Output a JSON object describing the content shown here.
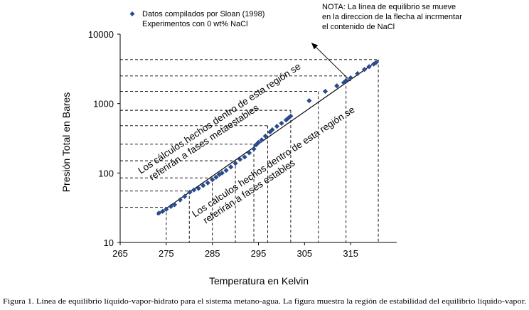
{
  "caption": "Figura 1. Línea de equilibrio líquido-vapor-hidrato para el sistema metano-agua. La figura muestra la región de estabilidad del equilibrio líquido-vapor.",
  "chart_data": {
    "type": "scatter",
    "xlabel": "Temperatura en Kelvin",
    "ylabel": "Presión Total en Bares",
    "xlim": [
      265,
      325
    ],
    "ylim": [
      10,
      10000
    ],
    "y_scale": "log",
    "x_ticks": [
      "265",
      "275",
      "285",
      "295",
      "305",
      "315"
    ],
    "y_ticks": [
      "10",
      "100",
      "1000",
      "10000"
    ],
    "legend": {
      "position": "top-center",
      "lines": [
        "Datos compilados por Sloan (1998)",
        "Experimentos con 0 wt% NaCl"
      ]
    },
    "note_lines": [
      "NOTA: La línea de equilibrio se mueve",
      "en la direccion de la flecha al incrmentar",
      "el contenido de NaCl"
    ],
    "region_upper_lines": [
      "Los cálculos hechos dentro de esta región se",
      "referirán a fases metaestables"
    ],
    "region_lower_lines": [
      "Los cálculos hechos dentro de esta región se",
      "referirán a fases estables"
    ],
    "series": [
      {
        "name": "Datos compilados por Sloan (1998)",
        "color": "#2a4b8d",
        "marker": "diamond",
        "x": [
          273.4,
          274.2,
          275.0,
          276.0,
          276.8,
          278.0,
          279.0,
          280.1,
          281.0,
          282.0,
          283.0,
          284.0,
          285.0,
          285.8,
          286.5,
          287.1,
          288.0,
          289.0,
          290.0,
          291.0,
          292.0,
          293.0,
          294.0,
          294.5,
          295.0,
          295.7,
          296.5,
          297.5,
          298.0,
          299.0,
          300.0,
          301.0,
          301.5,
          302.0,
          306.0,
          309.5,
          312.0,
          313.5,
          314.0,
          315.0,
          316.5,
          318.0,
          319.0,
          320.0,
          320.5
        ],
        "y": [
          26.5,
          28,
          30,
          33,
          35,
          41,
          46,
          53,
          57,
          60,
          66,
          72,
          80,
          87,
          95,
          100,
          109,
          122,
          138,
          157,
          170,
          195,
          222,
          255,
          276,
          300,
          340,
          390,
          420,
          470,
          520,
          580,
          620,
          660,
          1100,
          1500,
          1800,
          2000,
          2150,
          2350,
          2700,
          3100,
          3400,
          3700,
          3900
        ]
      }
    ],
    "fit_line": {
      "x": [
        273,
        321
      ],
      "y": [
        25,
        4200
      ]
    },
    "guide_points": {
      "x": [
        275,
        280,
        285,
        290,
        294,
        297,
        302,
        308,
        314,
        321
      ],
      "y": [
        32,
        55,
        85,
        150,
        260,
        480,
        800,
        1500,
        2500,
        4300
      ]
    },
    "arrow": {
      "from": [
        315,
        2100
      ],
      "to": [
        306.5,
        7500
      ]
    },
    "colors": {
      "marker": "#2a4b8d",
      "line": "#000000",
      "guide": "#000000",
      "axis": "#000000"
    }
  }
}
